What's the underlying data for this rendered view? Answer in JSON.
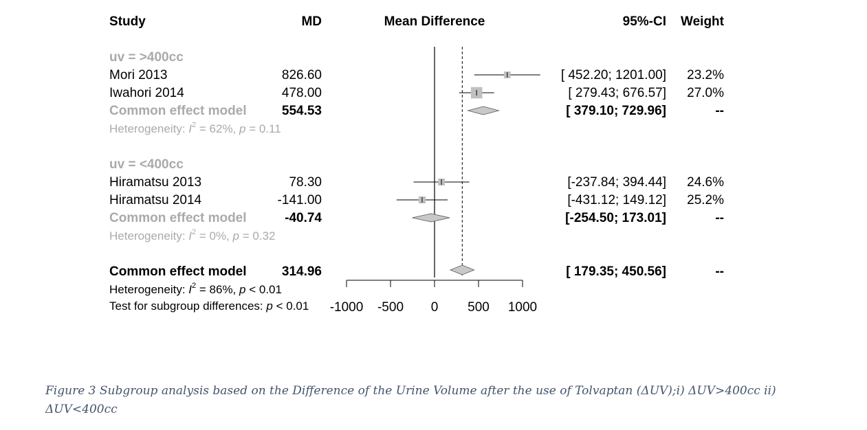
{
  "chart_data": {
    "type": "forest",
    "headers": {
      "study": "Study",
      "md": "MD",
      "plot": "Mean Difference",
      "ci": "95%-CI",
      "weight": "Weight"
    },
    "subgroups": [
      {
        "label": "uv = >400cc",
        "studies": [
          {
            "name": "Mori 2013",
            "md_text": "826.60",
            "md": 826.6,
            "lower": 452.2,
            "upper": 1201.0,
            "ci_text": "[ 452.20; 1201.00]",
            "weight_text": "23.2%",
            "weight": 23.2
          },
          {
            "name": "Iwahori 2014",
            "md_text": "478.00",
            "md": 478.0,
            "lower": 279.43,
            "upper": 676.57,
            "ci_text": "[ 279.43; 676.57]",
            "weight_text": "27.0%",
            "weight": 27.0
          }
        ],
        "pooled": {
          "label": "Common effect model",
          "md_text": "554.53",
          "md": 554.53,
          "lower": 379.1,
          "upper": 729.96,
          "ci_text": "[ 379.10; 729.96]",
          "weight_text": "--"
        },
        "heterogeneity": {
          "prefix": "Heterogeneity: ",
          "i2_sym": "I",
          "sup": "2",
          "i2_val": " = 62%, ",
          "p_sym": "p",
          "p_val": " = 0.11"
        }
      },
      {
        "label": "uv = <400cc",
        "studies": [
          {
            "name": "Hiramatsu 2013",
            "md_text": "78.30",
            "md": 78.3,
            "lower": -237.84,
            "upper": 394.44,
            "ci_text": "[-237.84; 394.44]",
            "weight_text": "24.6%",
            "weight": 24.6
          },
          {
            "name": "Hiramatsu 2014",
            "md_text": "-141.00",
            "md": -141.0,
            "lower": -431.12,
            "upper": 149.12,
            "ci_text": "[-431.12; 149.12]",
            "weight_text": "25.2%",
            "weight": 25.2
          }
        ],
        "pooled": {
          "label": "Common effect model",
          "md_text": "-40.74",
          "md": -40.74,
          "lower": -254.5,
          "upper": 173.01,
          "ci_text": "[-254.50; 173.01]",
          "weight_text": "--"
        },
        "heterogeneity": {
          "prefix": "Heterogeneity: ",
          "i2_sym": "I",
          "sup": "2",
          "i2_val": " = 0%, ",
          "p_sym": "p",
          "p_val": " = 0.32"
        }
      }
    ],
    "overall": {
      "label": "Common effect model",
      "md_text": "314.96",
      "md": 314.96,
      "lower": 179.35,
      "upper": 450.56,
      "ci_text": "[ 179.35; 450.56]",
      "weight_text": "--",
      "heterogeneity": {
        "prefix": "Heterogeneity: ",
        "i2_sym": "I",
        "sup": "2",
        "i2_val": " = 86%, ",
        "p_sym": "p",
        "p_val": " < 0.01"
      },
      "subgroup_test": {
        "prefix": "Test for subgroup differences: ",
        "p_sym": "p",
        "p_val": " < 0.01"
      }
    },
    "xaxis": {
      "ticks": [
        -1000,
        -500,
        0,
        500,
        1000
      ],
      "tick_labels": [
        "-1000",
        "-500",
        "0",
        "500",
        "1000"
      ],
      "range": [
        -1000,
        1000
      ]
    },
    "colors": {
      "subgroup_text": "#aaaaaa",
      "box": "#c0c0c0",
      "diamond": "#c8c8c8"
    }
  },
  "caption": "Figure 3 Subgroup analysis based on the Difference of the Urine Volume after the use of Tolvaptan (ΔUV);i) ΔUV>400cc ii) ΔUV<400cc"
}
